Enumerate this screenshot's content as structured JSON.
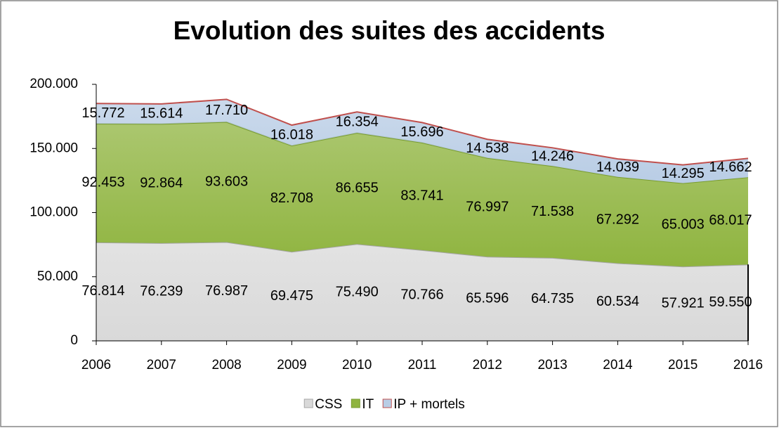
{
  "chart_data": {
    "type": "area",
    "stacked": true,
    "title": "Evolution des suites des accidents",
    "categories": [
      "2006",
      "2007",
      "2008",
      "2009",
      "2010",
      "2011",
      "2012",
      "2013",
      "2014",
      "2015",
      "2016"
    ],
    "series": [
      {
        "name": "CSS",
        "color": "#d9d9d9",
        "line_color": "#a6a6a6",
        "values": [
          76814,
          76239,
          76987,
          69475,
          75490,
          70766,
          65596,
          64735,
          60534,
          57921,
          59550
        ],
        "value_labels": [
          "76.814",
          "76.239",
          "76.987",
          "69.475",
          "75.490",
          "70.766",
          "65.596",
          "64.735",
          "60.534",
          "57.921",
          "59.550"
        ]
      },
      {
        "name": "IT",
        "color": "#8fb43f",
        "line_color": "#7a9c30",
        "values": [
          92453,
          92864,
          93603,
          82708,
          86655,
          83741,
          76997,
          71538,
          67292,
          65003,
          68017
        ],
        "value_labels": [
          "92.453",
          "92.864",
          "93.603",
          "82.708",
          "86.655",
          "83.741",
          "76.997",
          "71.538",
          "67.292",
          "65.003",
          "68.017"
        ]
      },
      {
        "name": "IP + mortels",
        "color": "#b9cde5",
        "line_color": "#c0504d",
        "values": [
          15772,
          15614,
          17710,
          16018,
          16354,
          15696,
          14538,
          14246,
          14039,
          14295,
          14662
        ],
        "value_labels": [
          "15.772",
          "15.614",
          "17.710",
          "16.018",
          "16.354",
          "15.696",
          "14.538",
          "14.246",
          "14.039",
          "14.295",
          "14.662"
        ]
      }
    ],
    "ylim": [
      0,
      200000
    ],
    "yticks": [
      0,
      {
        "value": 50000,
        "label": "50.000"
      },
      {
        "value": 100000,
        "label": "100.000"
      },
      {
        "value": 150000,
        "label": "150.000"
      },
      {
        "value": 200000,
        "label": "200.000"
      }
    ],
    "legend": "bottom"
  }
}
